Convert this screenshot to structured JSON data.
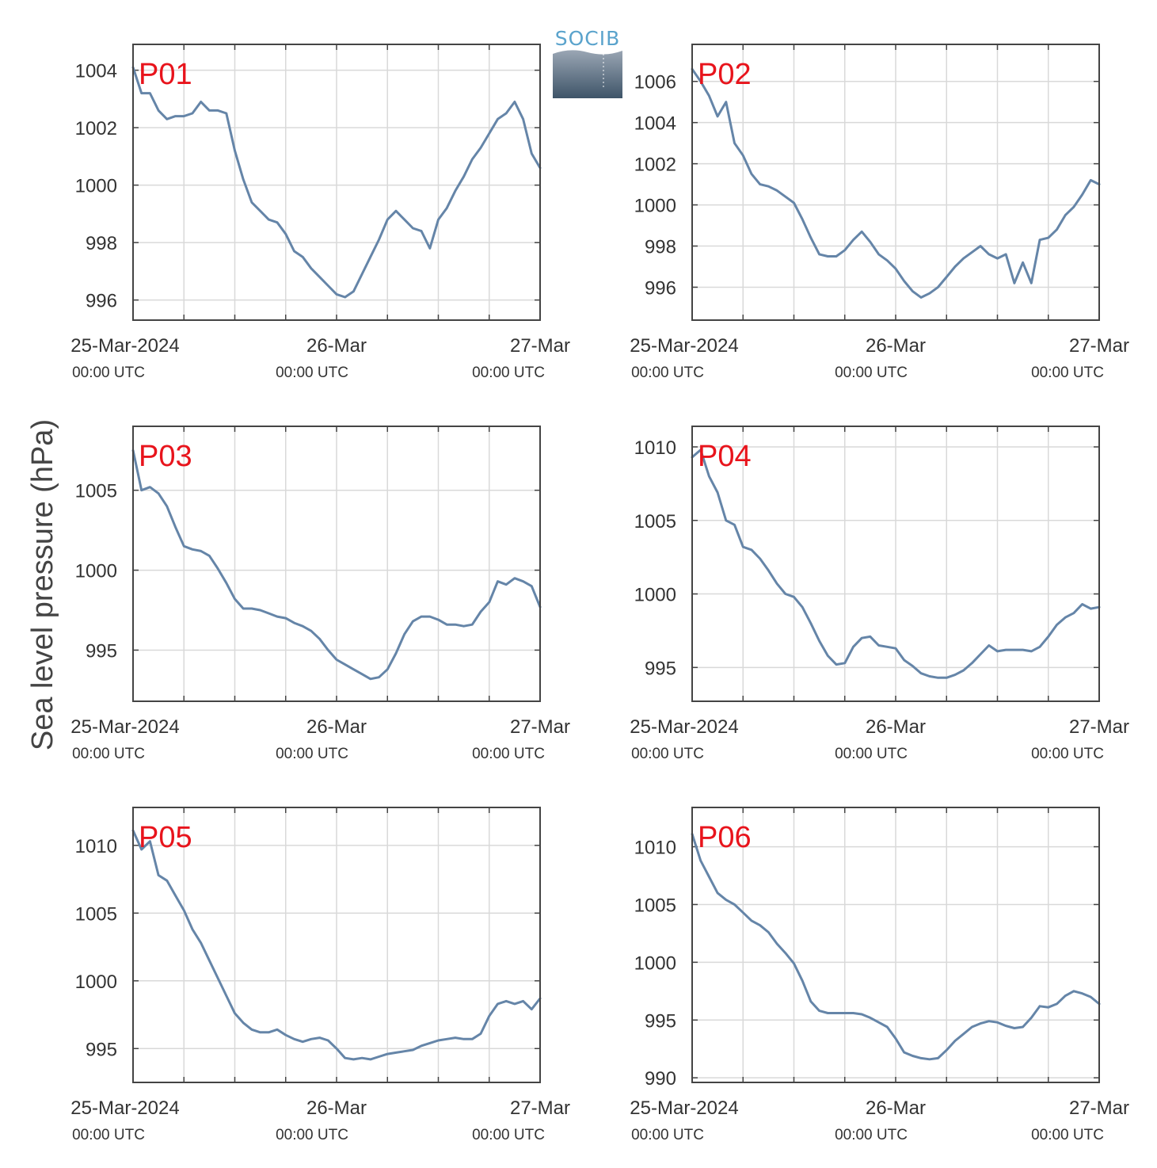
{
  "logo": {
    "text": "SOCIB"
  },
  "y_axis_label": "Sea level pressure (hPa)",
  "colors": {
    "line": "#6585a8",
    "label": "#e8141c",
    "grid": "#d9d9d9",
    "frame": "#444444"
  },
  "x_ticks": [
    {
      "main": "25-Mar-2024",
      "sub": "00:00 UTC"
    },
    {
      "main": "26-Mar",
      "sub": "00:00 UTC"
    },
    {
      "main": "27-Mar",
      "sub": "00:00 UTC"
    }
  ],
  "chart_data": [
    {
      "type": "line",
      "panel": "P01",
      "xlim": [
        0,
        48
      ],
      "ylim": [
        995.3,
        1004.9
      ],
      "yticks": [
        996,
        998,
        1000,
        1002,
        1004
      ],
      "x": [
        0,
        1,
        2,
        3,
        4,
        5,
        6,
        7,
        8,
        9,
        10,
        11,
        12,
        13,
        14,
        15,
        16,
        17,
        18,
        19,
        20,
        21,
        22,
        23,
        24,
        25,
        26,
        27,
        28,
        29,
        30,
        31,
        32,
        33,
        34,
        35,
        36,
        37,
        38,
        39,
        40,
        41,
        42,
        43,
        44,
        45,
        46,
        47,
        48
      ],
      "values": [
        1004.1,
        1003.2,
        1003.2,
        1002.6,
        1002.3,
        1002.4,
        1002.4,
        1002.5,
        1002.9,
        1002.6,
        1002.6,
        1002.5,
        1001.2,
        1000.2,
        999.4,
        999.1,
        998.8,
        998.7,
        998.3,
        997.7,
        997.5,
        997.1,
        996.8,
        996.5,
        996.2,
        996.1,
        996.3,
        996.9,
        997.5,
        998.1,
        998.8,
        999.1,
        998.8,
        998.5,
        998.4,
        997.8,
        998.8,
        999.2,
        999.8,
        1000.3,
        1000.9,
        1001.3,
        1001.8,
        1002.3,
        1002.5,
        1002.9,
        1002.3,
        1001.1,
        1000.6
      ]
    },
    {
      "type": "line",
      "panel": "P02",
      "xlim": [
        0,
        48
      ],
      "ylim": [
        994.4,
        1007.8
      ],
      "yticks": [
        996,
        998,
        1000,
        1002,
        1004,
        1006
      ],
      "x": [
        0,
        1,
        2,
        3,
        4,
        5,
        6,
        7,
        8,
        9,
        10,
        11,
        12,
        13,
        14,
        15,
        16,
        17,
        18,
        19,
        20,
        21,
        22,
        23,
        24,
        25,
        26,
        27,
        28,
        29,
        30,
        31,
        32,
        33,
        34,
        35,
        36,
        37,
        38,
        39,
        40,
        41,
        42,
        43,
        44,
        45,
        46,
        47,
        48
      ],
      "values": [
        1006.6,
        1006.0,
        1005.3,
        1004.3,
        1005.0,
        1003.0,
        1002.4,
        1001.5,
        1001.0,
        1000.9,
        1000.7,
        1000.4,
        1000.1,
        999.3,
        998.4,
        997.6,
        997.5,
        997.5,
        997.8,
        998.3,
        998.7,
        998.2,
        997.6,
        997.3,
        996.9,
        996.3,
        995.8,
        995.5,
        995.7,
        996.0,
        996.5,
        997.0,
        997.4,
        997.7,
        998.0,
        997.6,
        997.4,
        997.6,
        996.2,
        997.2,
        996.2,
        998.3,
        998.4,
        998.8,
        999.5,
        999.9,
        1000.5,
        1001.2,
        1001.0
      ]
    },
    {
      "type": "line",
      "panel": "P03",
      "xlim": [
        0,
        48
      ],
      "ylim": [
        991.8,
        1009.0
      ],
      "yticks": [
        995,
        1000,
        1005
      ],
      "x": [
        0,
        1,
        2,
        3,
        4,
        5,
        6,
        7,
        8,
        9,
        10,
        11,
        12,
        13,
        14,
        15,
        16,
        17,
        18,
        19,
        20,
        21,
        22,
        23,
        24,
        25,
        26,
        27,
        28,
        29,
        30,
        31,
        32,
        33,
        34,
        35,
        36,
        37,
        38,
        39,
        40,
        41,
        42,
        43,
        44,
        45,
        46,
        47,
        48
      ],
      "values": [
        1007.5,
        1005.0,
        1005.2,
        1004.8,
        1004.0,
        1002.7,
        1001.5,
        1001.3,
        1001.2,
        1000.9,
        1000.1,
        999.2,
        998.2,
        997.6,
        997.6,
        997.5,
        997.3,
        997.1,
        997.0,
        996.7,
        996.5,
        996.2,
        995.7,
        995.0,
        994.4,
        994.1,
        993.8,
        993.5,
        993.2,
        993.3,
        993.8,
        994.8,
        996.0,
        996.8,
        997.1,
        997.1,
        996.9,
        996.6,
        996.6,
        996.5,
        996.6,
        997.4,
        998.0,
        999.3,
        999.1,
        999.5,
        999.3,
        999.0,
        997.7
      ]
    },
    {
      "type": "line",
      "panel": "P04",
      "xlim": [
        0,
        48
      ],
      "ylim": [
        992.7,
        1011.4
      ],
      "yticks": [
        995,
        1000,
        1005,
        1010
      ],
      "x": [
        0,
        1,
        2,
        3,
        4,
        5,
        6,
        7,
        8,
        9,
        10,
        11,
        12,
        13,
        14,
        15,
        16,
        17,
        18,
        19,
        20,
        21,
        22,
        23,
        24,
        25,
        26,
        27,
        28,
        29,
        30,
        31,
        32,
        33,
        34,
        35,
        36,
        37,
        38,
        39,
        40,
        41,
        42,
        43,
        44,
        45,
        46,
        47,
        48
      ],
      "values": [
        1009.3,
        1009.8,
        1008.0,
        1006.9,
        1005.0,
        1004.7,
        1003.2,
        1003.0,
        1002.4,
        1001.6,
        1000.7,
        1000.0,
        999.8,
        999.1,
        998.0,
        996.8,
        995.8,
        995.2,
        995.3,
        996.4,
        997.0,
        997.1,
        996.5,
        996.4,
        996.3,
        995.5,
        995.1,
        994.6,
        994.4,
        994.3,
        994.3,
        994.5,
        994.8,
        995.3,
        995.9,
        996.5,
        996.1,
        996.2,
        996.2,
        996.2,
        996.1,
        996.4,
        997.1,
        997.9,
        998.4,
        998.7,
        999.3,
        999.0,
        999.1
      ]
    },
    {
      "type": "line",
      "panel": "P05",
      "xlim": [
        0,
        48
      ],
      "ylim": [
        992.5,
        1012.8
      ],
      "yticks": [
        995,
        1000,
        1005,
        1010
      ],
      "x": [
        0,
        1,
        2,
        3,
        4,
        5,
        6,
        7,
        8,
        9,
        10,
        11,
        12,
        13,
        14,
        15,
        16,
        17,
        18,
        19,
        20,
        21,
        22,
        23,
        24,
        25,
        26,
        27,
        28,
        29,
        30,
        31,
        32,
        33,
        34,
        35,
        36,
        37,
        38,
        39,
        40,
        41,
        42,
        43,
        44,
        45,
        46,
        47,
        48
      ],
      "values": [
        1011.1,
        1009.7,
        1010.3,
        1007.8,
        1007.4,
        1006.3,
        1005.2,
        1003.8,
        1002.8,
        1001.5,
        1000.2,
        998.9,
        997.6,
        996.9,
        996.4,
        996.2,
        996.2,
        996.4,
        996.0,
        995.7,
        995.5,
        995.7,
        995.8,
        995.6,
        995.0,
        994.3,
        994.2,
        994.3,
        994.2,
        994.4,
        994.6,
        994.7,
        994.8,
        994.9,
        995.2,
        995.4,
        995.6,
        995.7,
        995.8,
        995.7,
        995.7,
        996.1,
        997.4,
        998.3,
        998.5,
        998.3,
        998.5,
        997.9,
        998.7
      ]
    },
    {
      "type": "line",
      "panel": "P06",
      "xlim": [
        0,
        48
      ],
      "ylim": [
        989.6,
        1013.4
      ],
      "yticks": [
        990,
        995,
        1000,
        1005,
        1010
      ],
      "x": [
        0,
        1,
        2,
        3,
        4,
        5,
        6,
        7,
        8,
        9,
        10,
        11,
        12,
        13,
        14,
        15,
        16,
        17,
        18,
        19,
        20,
        21,
        22,
        23,
        24,
        25,
        26,
        27,
        28,
        29,
        30,
        31,
        32,
        33,
        34,
        35,
        36,
        37,
        38,
        39,
        40,
        41,
        42,
        43,
        44,
        45,
        46,
        47,
        48
      ],
      "values": [
        1011.1,
        1008.8,
        1007.4,
        1006.0,
        1005.4,
        1005.0,
        1004.3,
        1003.6,
        1003.2,
        1002.6,
        1001.6,
        1000.8,
        999.9,
        998.4,
        996.6,
        995.8,
        995.6,
        995.6,
        995.6,
        995.6,
        995.5,
        995.2,
        994.8,
        994.4,
        993.4,
        992.2,
        991.9,
        991.7,
        991.6,
        991.7,
        992.4,
        993.2,
        993.8,
        994.4,
        994.7,
        994.9,
        994.8,
        994.5,
        994.3,
        994.4,
        995.2,
        996.2,
        996.1,
        996.4,
        997.1,
        997.5,
        997.3,
        997.0,
        996.4
      ]
    }
  ]
}
